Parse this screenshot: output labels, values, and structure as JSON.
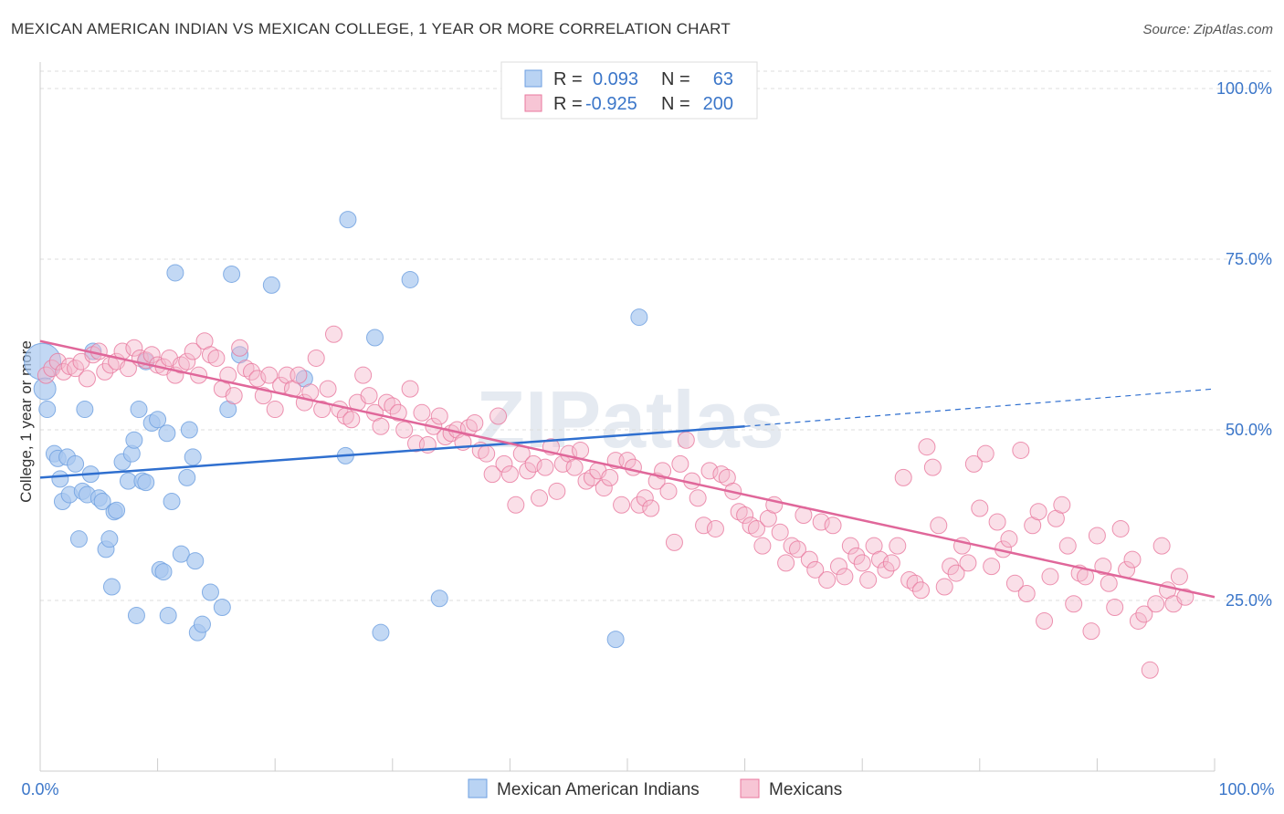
{
  "title": "MEXICAN AMERICAN INDIAN VS MEXICAN COLLEGE, 1 YEAR OR MORE CORRELATION CHART",
  "source": "Source: ZipAtlas.com",
  "watermark": "ZIPatlas",
  "chart_data": {
    "type": "scatter",
    "xlabel": "",
    "ylabel": "College, 1 year or more",
    "xlim": [
      0,
      100
    ],
    "ylim": [
      0,
      105
    ],
    "x_tick_labels": [
      "0.0%",
      "100.0%"
    ],
    "y_ticks": [
      25,
      50,
      75,
      100
    ],
    "y_tick_labels": [
      "25.0%",
      "50.0%",
      "75.0%",
      "100.0%"
    ],
    "grid": true,
    "legend": [
      {
        "r_label": "R =",
        "r_value": "0.093",
        "n_label": "N =",
        "n_value": "63",
        "color": "#a8c8f0"
      },
      {
        "r_label": "R =",
        "r_value": "-0.925",
        "n_label": "N =",
        "n_value": "200",
        "color": "#f5b7cb"
      }
    ],
    "series": [
      {
        "name": "Mexican American Indians",
        "color": "#a8c8f0",
        "stroke": "#6d9fe0",
        "trend": {
          "x0": 0,
          "y0": 43,
          "x1": 60,
          "y1": 50.5,
          "dashed_to_x": 100,
          "dashed_to_y": 56
        },
        "points": [
          [
            0.2,
            60
          ],
          [
            0.4,
            56
          ],
          [
            0.6,
            53
          ],
          [
            1.2,
            46.5
          ],
          [
            1.5,
            45.8
          ],
          [
            1.7,
            42.8
          ],
          [
            1.9,
            39.5
          ],
          [
            2.3,
            46
          ],
          [
            2.5,
            40.5
          ],
          [
            3.0,
            45
          ],
          [
            3.3,
            34
          ],
          [
            3.6,
            41
          ],
          [
            3.8,
            53
          ],
          [
            4.0,
            40.5
          ],
          [
            4.3,
            43.5
          ],
          [
            4.5,
            61.5
          ],
          [
            5.0,
            40
          ],
          [
            5.3,
            39.5
          ],
          [
            5.6,
            32.5
          ],
          [
            5.9,
            34
          ],
          [
            6.1,
            27
          ],
          [
            6.3,
            38
          ],
          [
            6.5,
            38.2
          ],
          [
            7.0,
            45.3
          ],
          [
            7.5,
            42.5
          ],
          [
            7.8,
            46.5
          ],
          [
            8.0,
            48.5
          ],
          [
            8.2,
            22.8
          ],
          [
            8.4,
            53
          ],
          [
            8.7,
            42.5
          ],
          [
            9.0,
            42.3
          ],
          [
            9.0,
            60
          ],
          [
            9.5,
            51
          ],
          [
            10.0,
            51.5
          ],
          [
            10.2,
            29.5
          ],
          [
            10.5,
            29.2
          ],
          [
            10.8,
            49.5
          ],
          [
            10.9,
            22.8
          ],
          [
            11.2,
            39.5
          ],
          [
            11.5,
            73
          ],
          [
            12.0,
            31.8
          ],
          [
            12.5,
            43
          ],
          [
            12.7,
            50
          ],
          [
            13.0,
            46
          ],
          [
            13.2,
            30.8
          ],
          [
            13.4,
            20.3
          ],
          [
            13.8,
            21.5
          ],
          [
            14.5,
            26.2
          ],
          [
            15.5,
            24
          ],
          [
            16.0,
            53
          ],
          [
            16.3,
            72.8
          ],
          [
            17.0,
            61
          ],
          [
            19.7,
            71.2
          ],
          [
            22.5,
            57.5
          ],
          [
            26.0,
            46.2
          ],
          [
            26.2,
            80.8
          ],
          [
            28.5,
            63.5
          ],
          [
            29.0,
            20.3
          ],
          [
            31.5,
            72
          ],
          [
            34.0,
            25.3
          ],
          [
            49.0,
            19.3
          ],
          [
            51.0,
            66.5
          ]
        ]
      },
      {
        "name": "Mexicans",
        "color": "#f5b7cb",
        "stroke": "#e9789e",
        "trend": {
          "x0": 0,
          "y0": 63,
          "x1": 100,
          "y1": 25.5
        },
        "points": [
          [
            0.5,
            58
          ],
          [
            1.0,
            59
          ],
          [
            1.5,
            60
          ],
          [
            2.0,
            58.5
          ],
          [
            2.5,
            59.3
          ],
          [
            3.0,
            59
          ],
          [
            3.5,
            60
          ],
          [
            4.0,
            57.5
          ],
          [
            4.5,
            61
          ],
          [
            5.0,
            61.5
          ],
          [
            5.5,
            58.5
          ],
          [
            6.0,
            59.5
          ],
          [
            6.5,
            60
          ],
          [
            7.0,
            61.5
          ],
          [
            7.5,
            59
          ],
          [
            8.0,
            62
          ],
          [
            8.5,
            60.5
          ],
          [
            9.0,
            60.2
          ],
          [
            9.5,
            61
          ],
          [
            10.0,
            59.5
          ],
          [
            10.5,
            59.2
          ],
          [
            11.0,
            60.5
          ],
          [
            11.5,
            58
          ],
          [
            12.0,
            59.5
          ],
          [
            12.5,
            60
          ],
          [
            13.0,
            61.5
          ],
          [
            13.5,
            58
          ],
          [
            14.0,
            63
          ],
          [
            14.5,
            61
          ],
          [
            15.0,
            60.5
          ],
          [
            15.5,
            56
          ],
          [
            16.0,
            58
          ],
          [
            16.5,
            55
          ],
          [
            17.0,
            62
          ],
          [
            17.5,
            59
          ],
          [
            18.0,
            58.5
          ],
          [
            18.5,
            57.5
          ],
          [
            19.0,
            55
          ],
          [
            19.5,
            58
          ],
          [
            20.0,
            53
          ],
          [
            20.5,
            56.5
          ],
          [
            21.0,
            58
          ],
          [
            21.5,
            56
          ],
          [
            22.0,
            58
          ],
          [
            22.5,
            54
          ],
          [
            23.0,
            55.5
          ],
          [
            23.5,
            60.5
          ],
          [
            24.0,
            53
          ],
          [
            24.5,
            56
          ],
          [
            25.0,
            64
          ],
          [
            25.5,
            53
          ],
          [
            26.0,
            52
          ],
          [
            26.5,
            51.5
          ],
          [
            27.0,
            54
          ],
          [
            27.5,
            58
          ],
          [
            28.0,
            55
          ],
          [
            28.5,
            52.5
          ],
          [
            29.0,
            50.5
          ],
          [
            29.5,
            54
          ],
          [
            30.0,
            53.5
          ],
          [
            30.5,
            52.5
          ],
          [
            31.0,
            50
          ],
          [
            31.5,
            56
          ],
          [
            32.0,
            48
          ],
          [
            32.5,
            52.5
          ],
          [
            33.0,
            47.8
          ],
          [
            33.5,
            50.5
          ],
          [
            34.0,
            52
          ],
          [
            34.5,
            49
          ],
          [
            35.0,
            49.5
          ],
          [
            35.5,
            50
          ],
          [
            36.0,
            48.2
          ],
          [
            36.5,
            50.3
          ],
          [
            37.0,
            51
          ],
          [
            37.5,
            47
          ],
          [
            38.0,
            46.5
          ],
          [
            38.5,
            43.5
          ],
          [
            39.0,
            52
          ],
          [
            39.5,
            45
          ],
          [
            40.0,
            43.5
          ],
          [
            40.5,
            39
          ],
          [
            41.0,
            46.5
          ],
          [
            41.5,
            44
          ],
          [
            42.0,
            45
          ],
          [
            42.5,
            40
          ],
          [
            43.0,
            44.5
          ],
          [
            43.5,
            47.5
          ],
          [
            44.0,
            41
          ],
          [
            44.5,
            45
          ],
          [
            45.0,
            46.5
          ],
          [
            45.5,
            44.5
          ],
          [
            46.0,
            47
          ],
          [
            46.5,
            42.5
          ],
          [
            47.0,
            43
          ],
          [
            47.5,
            44
          ],
          [
            48.0,
            41.5
          ],
          [
            48.5,
            43
          ],
          [
            49.0,
            45.5
          ],
          [
            49.5,
            39
          ],
          [
            50.0,
            45.5
          ],
          [
            50.5,
            44.5
          ],
          [
            51.0,
            39
          ],
          [
            51.5,
            40
          ],
          [
            52.0,
            38.5
          ],
          [
            52.5,
            42.5
          ],
          [
            53.0,
            44
          ],
          [
            53.5,
            41
          ],
          [
            54.0,
            33.5
          ],
          [
            54.5,
            45
          ],
          [
            55.0,
            48.5
          ],
          [
            55.5,
            42.5
          ],
          [
            56.0,
            40
          ],
          [
            56.5,
            36
          ],
          [
            57.0,
            44
          ],
          [
            57.5,
            35.5
          ],
          [
            58.0,
            43.5
          ],
          [
            58.5,
            43
          ],
          [
            59.0,
            41
          ],
          [
            59.5,
            38
          ],
          [
            60.0,
            37.5
          ],
          [
            60.5,
            36
          ],
          [
            61.0,
            35.5
          ],
          [
            61.5,
            33
          ],
          [
            62.0,
            37
          ],
          [
            62.5,
            39
          ],
          [
            63.0,
            35
          ],
          [
            63.5,
            30.5
          ],
          [
            64.0,
            33
          ],
          [
            64.5,
            32.5
          ],
          [
            65.0,
            37.5
          ],
          [
            65.5,
            31
          ],
          [
            66.0,
            29.5
          ],
          [
            66.5,
            36.5
          ],
          [
            67.0,
            28
          ],
          [
            67.5,
            36
          ],
          [
            68.0,
            30
          ],
          [
            68.5,
            28.5
          ],
          [
            69.0,
            33
          ],
          [
            69.5,
            31.5
          ],
          [
            70.0,
            30.5
          ],
          [
            70.5,
            28
          ],
          [
            71.0,
            33
          ],
          [
            71.5,
            31
          ],
          [
            72.0,
            29.5
          ],
          [
            72.5,
            30.5
          ],
          [
            73.0,
            33
          ],
          [
            73.5,
            43
          ],
          [
            74.0,
            28
          ],
          [
            74.5,
            27.5
          ],
          [
            75.0,
            26.5
          ],
          [
            75.5,
            47.5
          ],
          [
            76.0,
            44.5
          ],
          [
            76.5,
            36
          ],
          [
            77.0,
            27
          ],
          [
            77.5,
            30
          ],
          [
            78.0,
            29
          ],
          [
            78.5,
            33
          ],
          [
            79.0,
            30.5
          ],
          [
            79.5,
            45
          ],
          [
            80.0,
            38.5
          ],
          [
            80.5,
            46.5
          ],
          [
            81.0,
            30
          ],
          [
            81.5,
            36.5
          ],
          [
            82.0,
            32.5
          ],
          [
            82.5,
            34
          ],
          [
            83.0,
            27.5
          ],
          [
            83.5,
            47
          ],
          [
            84.0,
            26
          ],
          [
            84.5,
            36
          ],
          [
            85.0,
            38
          ],
          [
            85.5,
            22
          ],
          [
            86.0,
            28.5
          ],
          [
            86.5,
            37
          ],
          [
            87.0,
            39
          ],
          [
            87.5,
            33
          ],
          [
            88.0,
            24.5
          ],
          [
            88.5,
            29
          ],
          [
            89.0,
            28.5
          ],
          [
            89.5,
            20.5
          ],
          [
            90.0,
            34.5
          ],
          [
            90.5,
            30
          ],
          [
            91.0,
            27.5
          ],
          [
            91.5,
            24
          ],
          [
            92.0,
            35.5
          ],
          [
            92.5,
            29.5
          ],
          [
            93.0,
            31
          ],
          [
            93.5,
            22
          ],
          [
            94.0,
            23
          ],
          [
            94.5,
            14.8
          ],
          [
            95.0,
            24.5
          ],
          [
            95.5,
            33
          ],
          [
            96.0,
            26.5
          ],
          [
            96.5,
            24.5
          ],
          [
            97.0,
            28.5
          ],
          [
            97.5,
            25.5
          ]
        ]
      }
    ]
  }
}
